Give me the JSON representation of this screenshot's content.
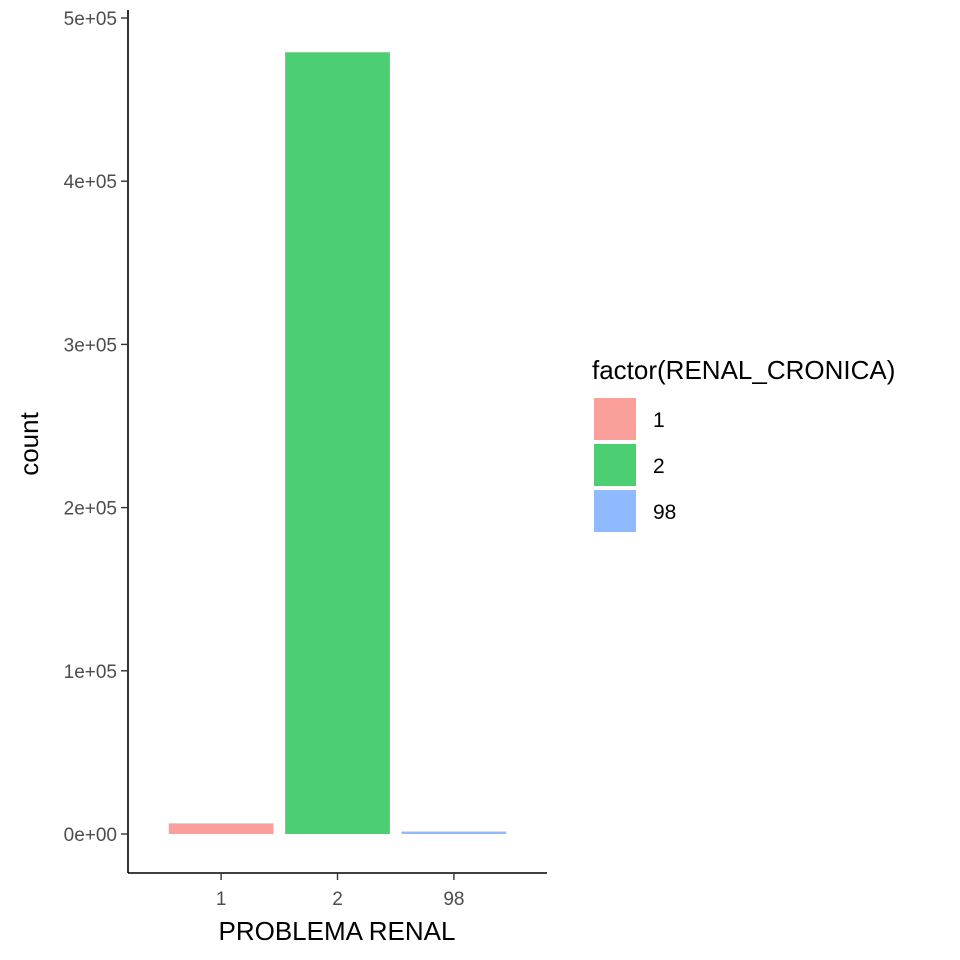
{
  "chart_data": {
    "type": "bar",
    "title": "",
    "xlabel": "PROBLEMA RENAL",
    "ylabel": "count",
    "categories": [
      "1",
      "2",
      "98"
    ],
    "values": [
      6500,
      479000,
      1500
    ],
    "colors": [
      "#F8766D",
      "#00BA38",
      "#619CFF"
    ],
    "bar_opacity": 0.7,
    "ylim": [
      0,
      500000
    ],
    "y_ticks": [
      0,
      100000,
      200000,
      300000,
      400000,
      500000
    ],
    "y_tick_labels": [
      "0e+00",
      "1e+05",
      "2e+05",
      "3e+05",
      "4e+05",
      "5e+05"
    ],
    "grid": false,
    "legend": {
      "title": "factor(RENAL_CRONICA)",
      "position": "right",
      "entries": [
        "1",
        "2",
        "98"
      ]
    }
  }
}
